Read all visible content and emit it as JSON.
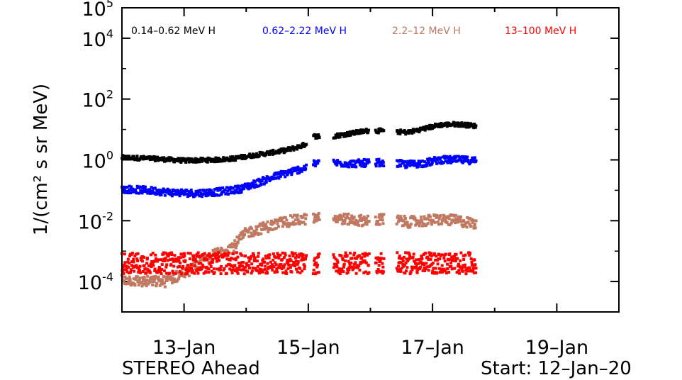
{
  "chart_data": {
    "type": "scatter",
    "title": "",
    "xlabel": "",
    "ylabel": "1/(cm² s sr MeV)",
    "y_scale": "log",
    "ylim_exponent": [
      -5,
      5
    ],
    "y_ticks": [
      {
        "exp": "5",
        "value": 100000
      },
      {
        "exp": "4",
        "value": 10000
      },
      {
        "exp": "2",
        "value": 100
      },
      {
        "exp": "0",
        "value": 1
      },
      {
        "exp": "-2",
        "value": 0.01
      },
      {
        "exp": "-4",
        "value": 0.0001
      }
    ],
    "y_tick_base": "10",
    "xlim_days": [
      12.0,
      20.0
    ],
    "x_ticks": [
      {
        "label": "13–Jan",
        "day": 13
      },
      {
        "label": "15–Jan",
        "day": 15
      },
      {
        "label": "17–Jan",
        "day": 17
      },
      {
        "label": "19–Jan",
        "day": 19
      }
    ],
    "grid": false,
    "legend_position": "top",
    "series": [
      {
        "name": "0.14–0.62 MeV H",
        "color": "#000000",
        "points": [
          [
            12.0,
            1.2
          ],
          [
            12.5,
            1.1
          ],
          [
            13.0,
            0.95
          ],
          [
            13.5,
            1.0
          ],
          [
            13.8,
            1.1
          ],
          [
            14.0,
            1.3
          ],
          [
            14.3,
            1.6
          ],
          [
            14.6,
            2.0
          ],
          [
            14.8,
            2.5
          ],
          [
            14.95,
            3.2
          ],
          [
            15.1,
            6.0
          ],
          [
            15.4,
            6.0
          ],
          [
            15.7,
            7.5
          ],
          [
            15.95,
            9.0
          ],
          [
            16.2,
            9.0
          ],
          [
            16.6,
            8.0
          ],
          [
            16.9,
            11.0
          ],
          [
            17.1,
            14.0
          ],
          [
            17.4,
            15.0
          ],
          [
            17.7,
            13.0
          ]
        ]
      },
      {
        "name": "0.62–2.22 MeV H",
        "color": "#0000ff",
        "points": [
          [
            12.0,
            0.11
          ],
          [
            12.4,
            0.1
          ],
          [
            12.8,
            0.085
          ],
          [
            13.2,
            0.08
          ],
          [
            13.6,
            0.09
          ],
          [
            13.9,
            0.11
          ],
          [
            14.2,
            0.18
          ],
          [
            14.5,
            0.3
          ],
          [
            14.8,
            0.45
          ],
          [
            14.95,
            0.55
          ],
          [
            15.1,
            0.75
          ],
          [
            15.4,
            0.8
          ],
          [
            15.7,
            0.75
          ],
          [
            16.0,
            0.8
          ],
          [
            16.3,
            0.8
          ],
          [
            16.6,
            0.7
          ],
          [
            16.9,
            0.8
          ],
          [
            17.1,
            1.0
          ],
          [
            17.4,
            1.0
          ],
          [
            17.7,
            0.95
          ]
        ]
      },
      {
        "name": "2.2–12 MeV H",
        "color": "#c07860",
        "points": [
          [
            12.0,
            0.00012
          ],
          [
            12.3,
            0.0001
          ],
          [
            12.7,
            0.0001
          ],
          [
            13.2,
            0.0003
          ],
          [
            13.5,
            0.0008
          ],
          [
            13.8,
            0.0015
          ],
          [
            14.0,
            0.004
          ],
          [
            14.3,
            0.006
          ],
          [
            14.6,
            0.009
          ],
          [
            14.9,
            0.011
          ],
          [
            15.1,
            0.012
          ],
          [
            15.5,
            0.012
          ],
          [
            15.8,
            0.01
          ],
          [
            16.0,
            0.011
          ],
          [
            16.3,
            0.011
          ],
          [
            16.6,
            0.009
          ],
          [
            16.9,
            0.01
          ],
          [
            17.1,
            0.011
          ],
          [
            17.4,
            0.01
          ],
          [
            17.7,
            0.008
          ]
        ]
      },
      {
        "name": "13–100 MeV H",
        "color": "#ff0000",
        "points": [
          [
            12.0,
            0.0004
          ],
          [
            12.5,
            0.0004
          ],
          [
            13.0,
            0.0004
          ],
          [
            13.5,
            0.0004
          ],
          [
            14.0,
            0.0004
          ],
          [
            14.5,
            0.0004
          ],
          [
            14.9,
            0.0004
          ],
          [
            15.1,
            0.0004
          ],
          [
            15.5,
            0.0004
          ],
          [
            16.0,
            0.0004
          ],
          [
            16.5,
            0.0004
          ],
          [
            17.0,
            0.0004
          ],
          [
            17.5,
            0.0004
          ],
          [
            17.7,
            0.0004
          ]
        ]
      }
    ],
    "data_gaps_days": [
      [
        14.97,
        15.08
      ],
      [
        15.18,
        15.4
      ],
      [
        15.98,
        16.08
      ],
      [
        16.22,
        16.42
      ]
    ]
  },
  "footer": {
    "left": "STEREO Ahead",
    "right": "Start: 12–Jan–20"
  }
}
